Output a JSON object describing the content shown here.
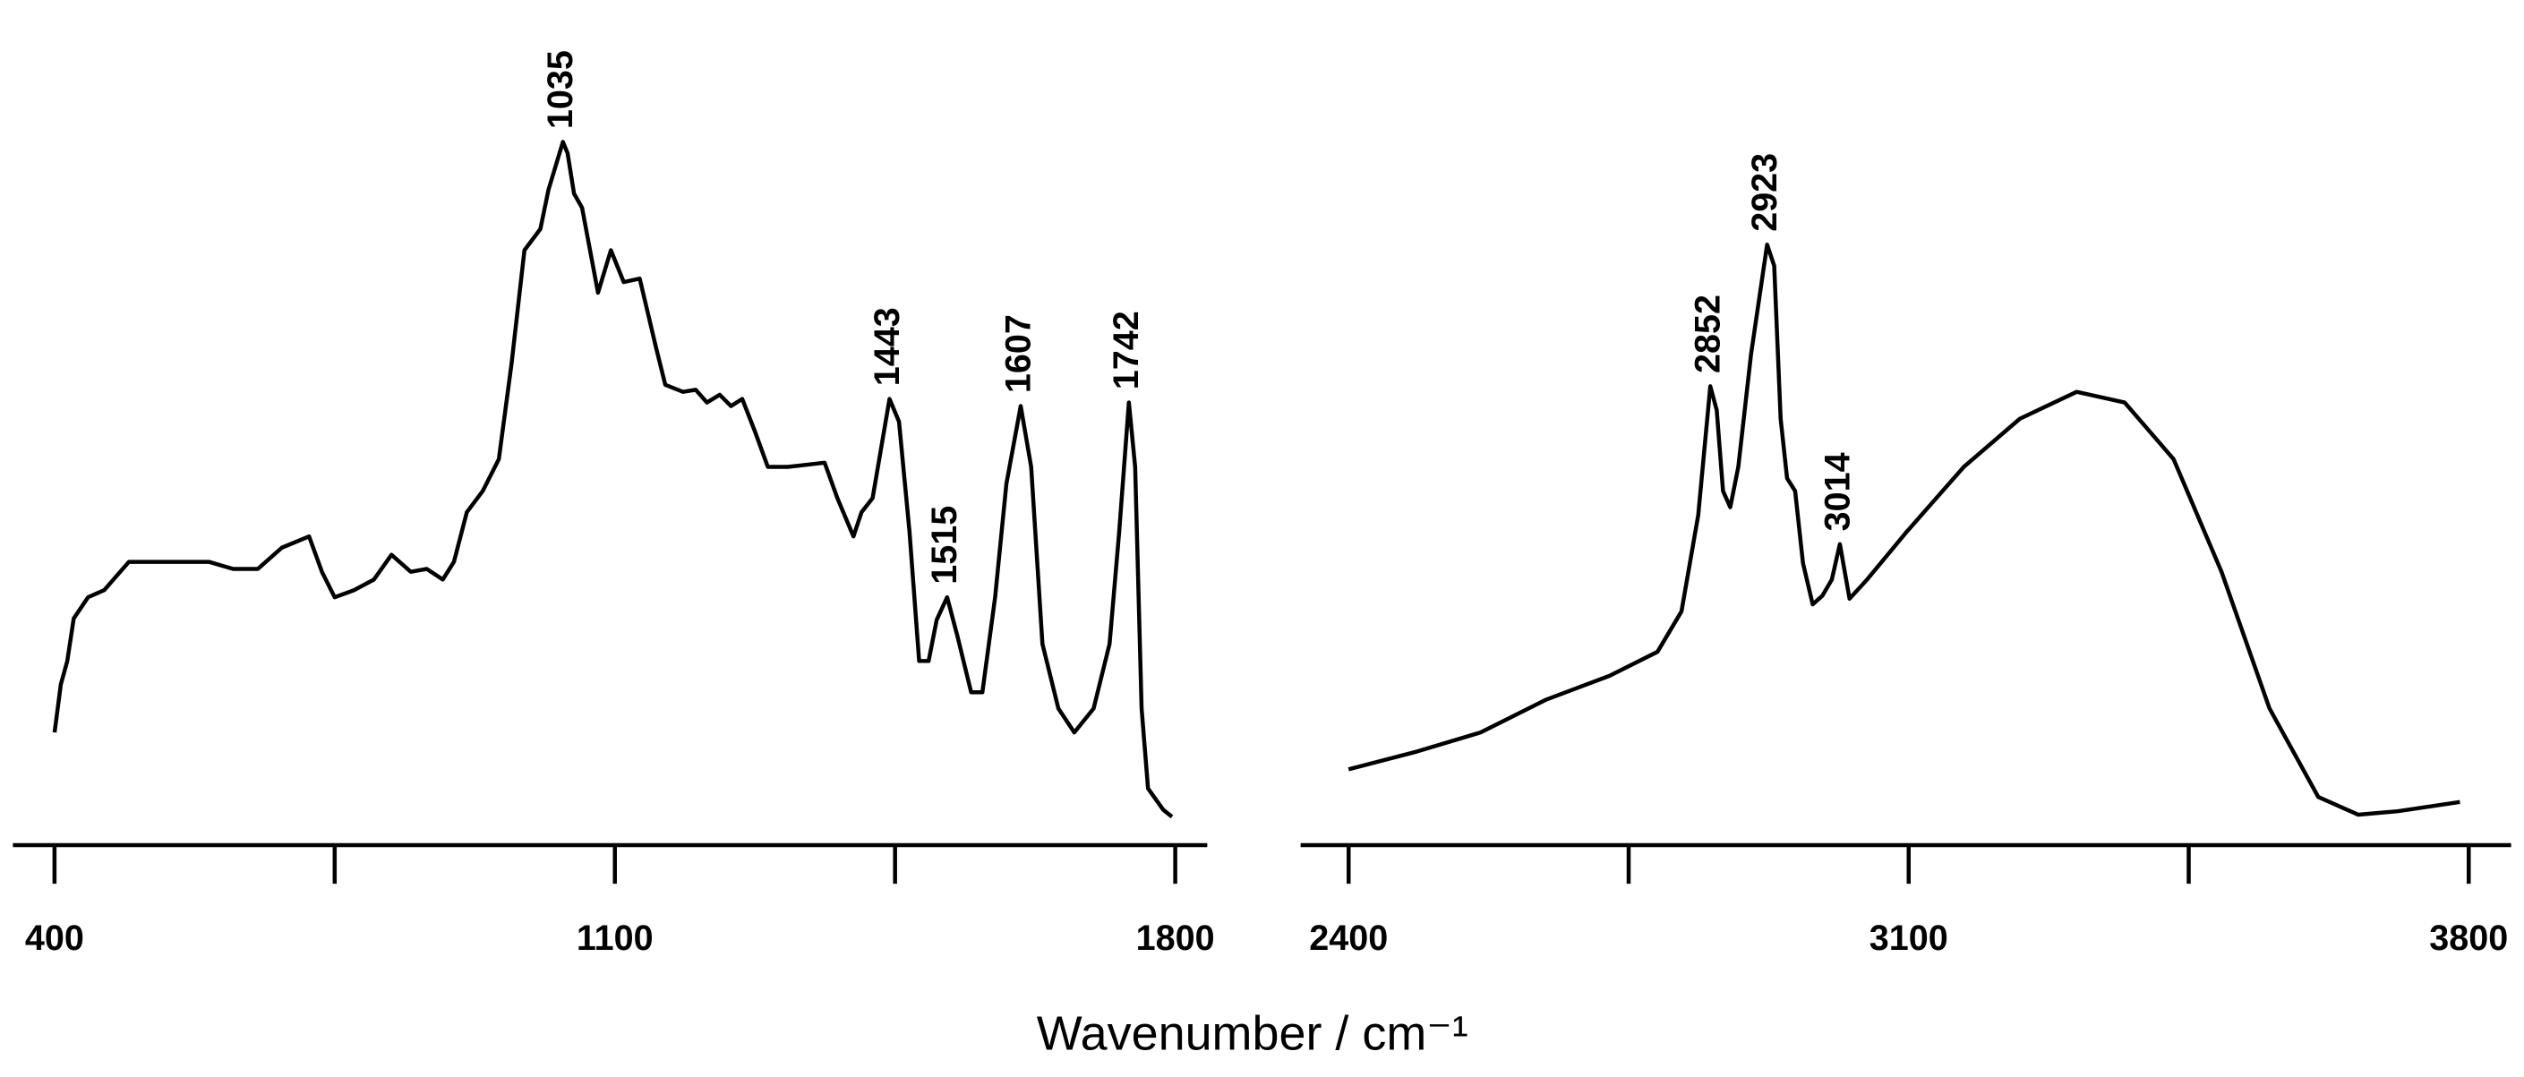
{
  "chart_data": [
    {
      "type": "line",
      "x": [
        400,
        408,
        416,
        424,
        442,
        462,
        493,
        533,
        593,
        623,
        654,
        684,
        718,
        734,
        750,
        774,
        799,
        821,
        845,
        865,
        885,
        899,
        915,
        935,
        955,
        971,
        987,
        1007,
        1017,
        1035,
        1041,
        1049,
        1059,
        1079,
        1095,
        1111,
        1131,
        1151,
        1163,
        1185,
        1201,
        1215,
        1231,
        1245,
        1259,
        1275,
        1291,
        1316,
        1362,
        1378,
        1398,
        1408,
        1422,
        1443,
        1455,
        1468,
        1480,
        1492,
        1502,
        1515,
        1528,
        1545,
        1559,
        1575,
        1589,
        1607,
        1620,
        1634,
        1654,
        1674,
        1698,
        1718,
        1730,
        1742,
        1750,
        1758,
        1766,
        1785,
        1796
      ],
      "series": [
        {
          "color": "#000000",
          "values": [
            15.9,
            22.7,
            26,
            32,
            35,
            36,
            40,
            40,
            40,
            39,
            39,
            42,
            43.6,
            38.6,
            35,
            36,
            37.5,
            41,
            38.6,
            39,
            37.5,
            40,
            47,
            50,
            54.5,
            68,
            84,
            87,
            92.5,
            99.3,
            97.7,
            92,
            90,
            78,
            84,
            79.5,
            80,
            70.5,
            65,
            64,
            64.3,
            62.5,
            63.6,
            62,
            63,
            58.4,
            53.4,
            53.4,
            54,
            49,
            43.6,
            47,
            49,
            63,
            59.8,
            44.3,
            26,
            26,
            31.8,
            35,
            29.5,
            21.6,
            21.6,
            35,
            51,
            62,
            53.4,
            28.4,
            19.3,
            15.9,
            19.3,
            28.4,
            44.3,
            62.5,
            53.4,
            19.3,
            8,
            5,
            4
          ]
        }
      ],
      "xlim": [
        348,
        1840
      ],
      "xticks": [
        400,
        1100,
        1800
      ],
      "minor_xticks": [
        750,
        1450
      ],
      "ylim": [
        0,
        100
      ],
      "annotations": [
        {
          "text": "1035",
          "x": 1035,
          "y": 99.3
        },
        {
          "text": "1443",
          "x": 1443,
          "y": 63
        },
        {
          "text": "1515",
          "x": 1515,
          "y": 35
        },
        {
          "text": "1607",
          "x": 1607,
          "y": 62
        },
        {
          "text": "1742",
          "x": 1742,
          "y": 62.5
        }
      ]
    },
    {
      "type": "line",
      "x": [
        2400,
        2485,
        2565,
        2646,
        2726,
        2786,
        2816,
        2837,
        2852,
        2860,
        2868,
        2877,
        2887,
        2903,
        2923,
        2932,
        2940,
        2948,
        2958,
        2968,
        2980,
        2992,
        3004,
        3014,
        3026,
        3048,
        3098,
        3169,
        3239,
        3310,
        3370,
        3431,
        3491,
        3551,
        3612,
        3662,
        3712,
        3789
      ],
      "series": [
        {
          "color": "#000000",
          "values": [
            10.7,
            13.2,
            15.9,
            20.5,
            23.9,
            27.3,
            33,
            46.6,
            64.8,
            61.4,
            50,
            47.7,
            53.4,
            69.3,
            84.8,
            81.8,
            60.2,
            51.8,
            50,
            39.8,
            34,
            35.2,
            37.5,
            42.5,
            34.8,
            37.5,
            44.3,
            53.4,
            60.2,
            64,
            62.5,
            54.5,
            38.6,
            19.3,
            6.8,
            4.3,
            4.8,
            6.1
          ]
        }
      ],
      "xlim": [
        2340,
        3853
      ],
      "xticks": [
        2400,
        3100,
        3800
      ],
      "minor_xticks": [
        2750,
        3450
      ],
      "ylim": [
        0,
        100
      ],
      "annotations": [
        {
          "text": "2852",
          "x": 2852,
          "y": 64.8
        },
        {
          "text": "2923",
          "x": 2923,
          "y": 84.8
        },
        {
          "text": "3014",
          "x": 3014,
          "y": 42.5
        }
      ]
    }
  ],
  "xlabel": "Wavenumber / cm⁻¹"
}
